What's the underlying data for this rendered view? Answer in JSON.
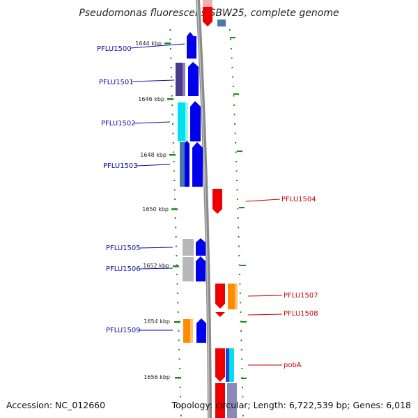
{
  "title": "Pseudomonas fluorescens SBW25, complete genome",
  "accession": "Accession: NC_012660",
  "topology": "Topology: circular; Length: 6,722,539 bp; Genes: 6,018",
  "ticks": [
    "1644 kbp",
    "1646 kbp",
    "1648 kbp",
    "1650 kbp",
    "1652 kbp",
    "1654 kbp",
    "1656 kbp"
  ],
  "genes_left": [
    "PFLU1500",
    "PFLU1501",
    "PFLU1502",
    "PFLU1503",
    "PFLU1505",
    "PFLU1506",
    "PFLU1509"
  ],
  "genes_right": [
    "PFLU1504",
    "PFLU1507",
    "PFLU1508",
    "pobA"
  ],
  "colors": {
    "forward_gene": "#0000ee",
    "reverse_gene": "#ee0000",
    "backbone": "#8a8a8a",
    "tick_green": "#1a8a1a",
    "label_blue": "#0a0aa8",
    "label_red": "#c80000",
    "cog_orange": "#ff8c00",
    "cog_cyan": "#00e0ee",
    "cog_gray": "#b8b8b8",
    "cog_purple": "#4a3a8a",
    "cog_steel": "#4a78a8"
  }
}
